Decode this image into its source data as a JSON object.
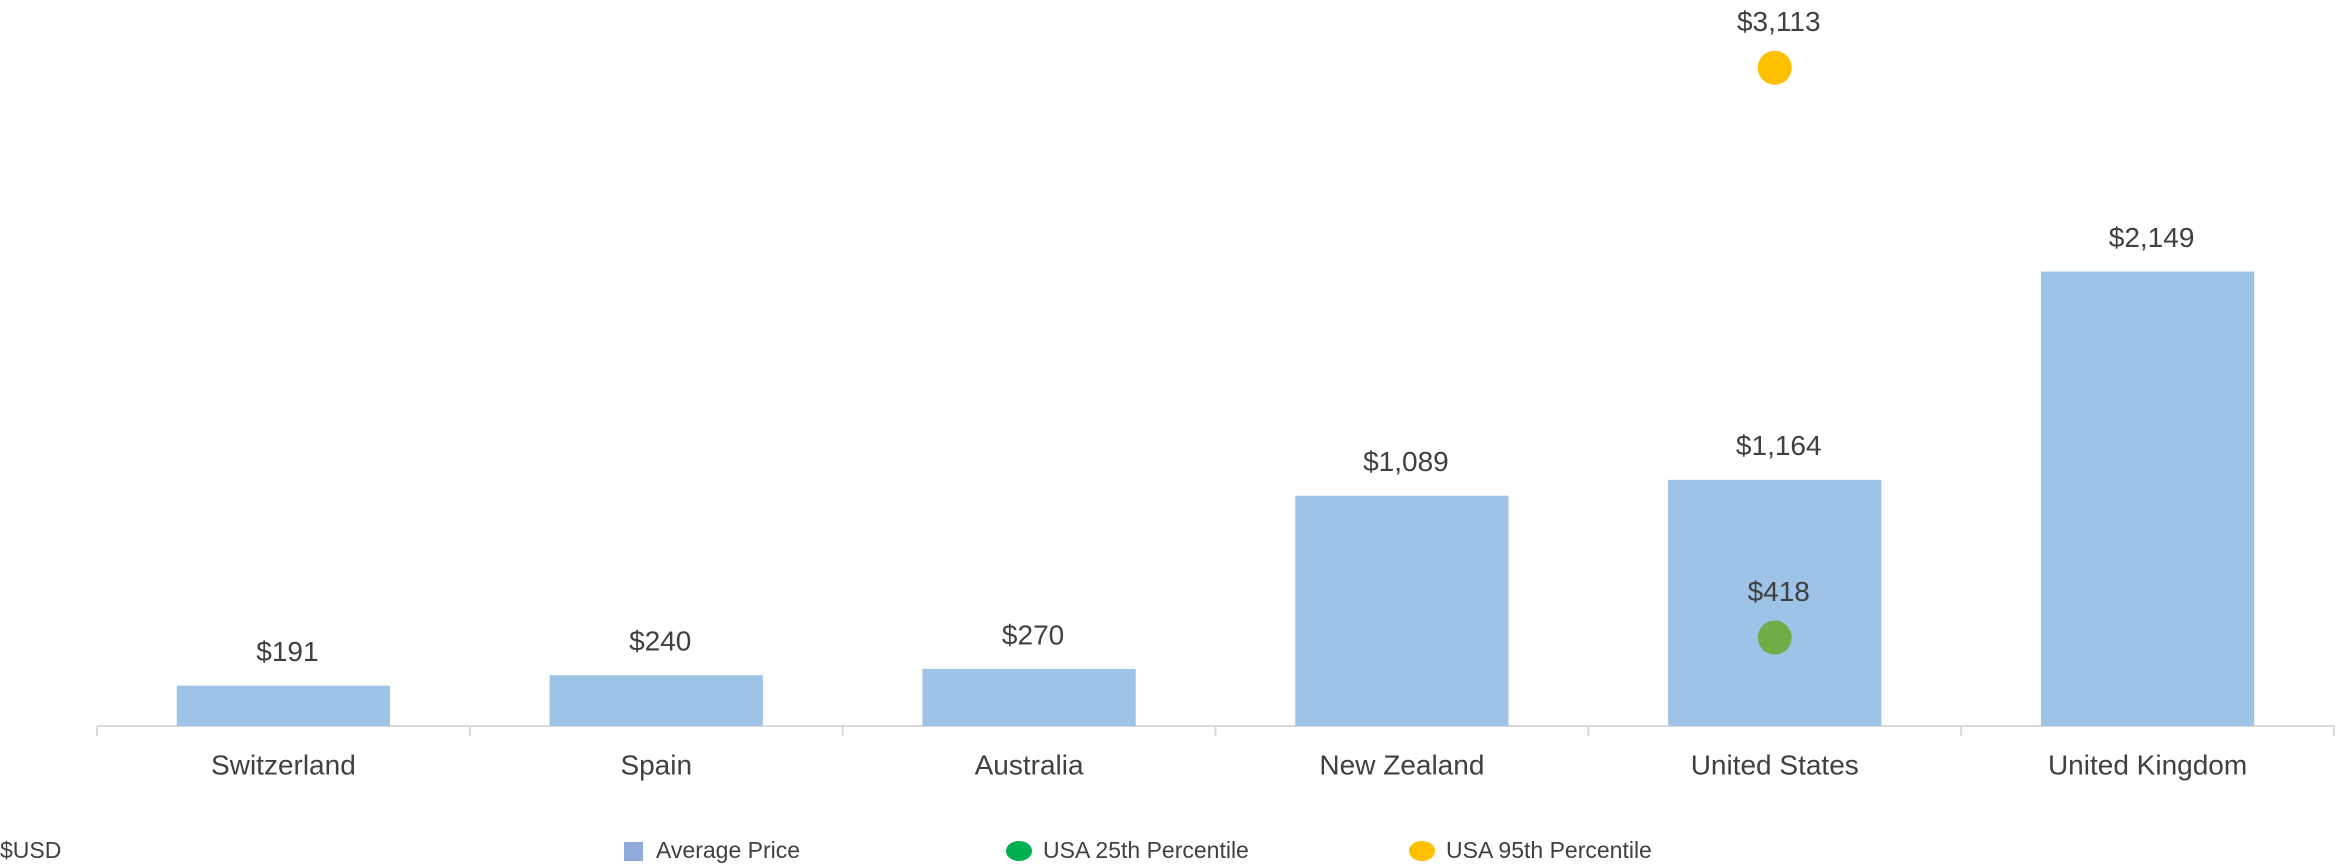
{
  "chart_data": {
    "type": "bar",
    "categories": [
      "Switzerland",
      "Spain",
      "Australia",
      "New Zealand",
      "United States",
      "United Kingdom"
    ],
    "series": [
      {
        "name": "Average Price",
        "type": "bar",
        "color": "#9dc3e6",
        "values": [
          191,
          240,
          270,
          1089,
          1164,
          2149
        ],
        "value_labels": [
          "$191",
          "$240",
          "$270",
          "$1,089",
          "$1,164",
          "$2,149"
        ]
      },
      {
        "name": "USA 25th Percentile",
        "type": "scatter",
        "color": "#70ad47",
        "legend_color": "#00b050",
        "values": [
          null,
          null,
          null,
          null,
          418,
          null
        ],
        "value_labels": [
          null,
          null,
          null,
          null,
          "$418",
          null
        ]
      },
      {
        "name": "USA 95th Percentile",
        "type": "scatter",
        "color": "#ffc000",
        "values": [
          null,
          null,
          null,
          null,
          3113,
          null
        ],
        "value_labels": [
          null,
          null,
          null,
          null,
          "$3,113",
          null
        ]
      }
    ],
    "y_label": "$USD",
    "ylim": [
      0,
      3400
    ],
    "legend": "bottom",
    "grid": false
  }
}
